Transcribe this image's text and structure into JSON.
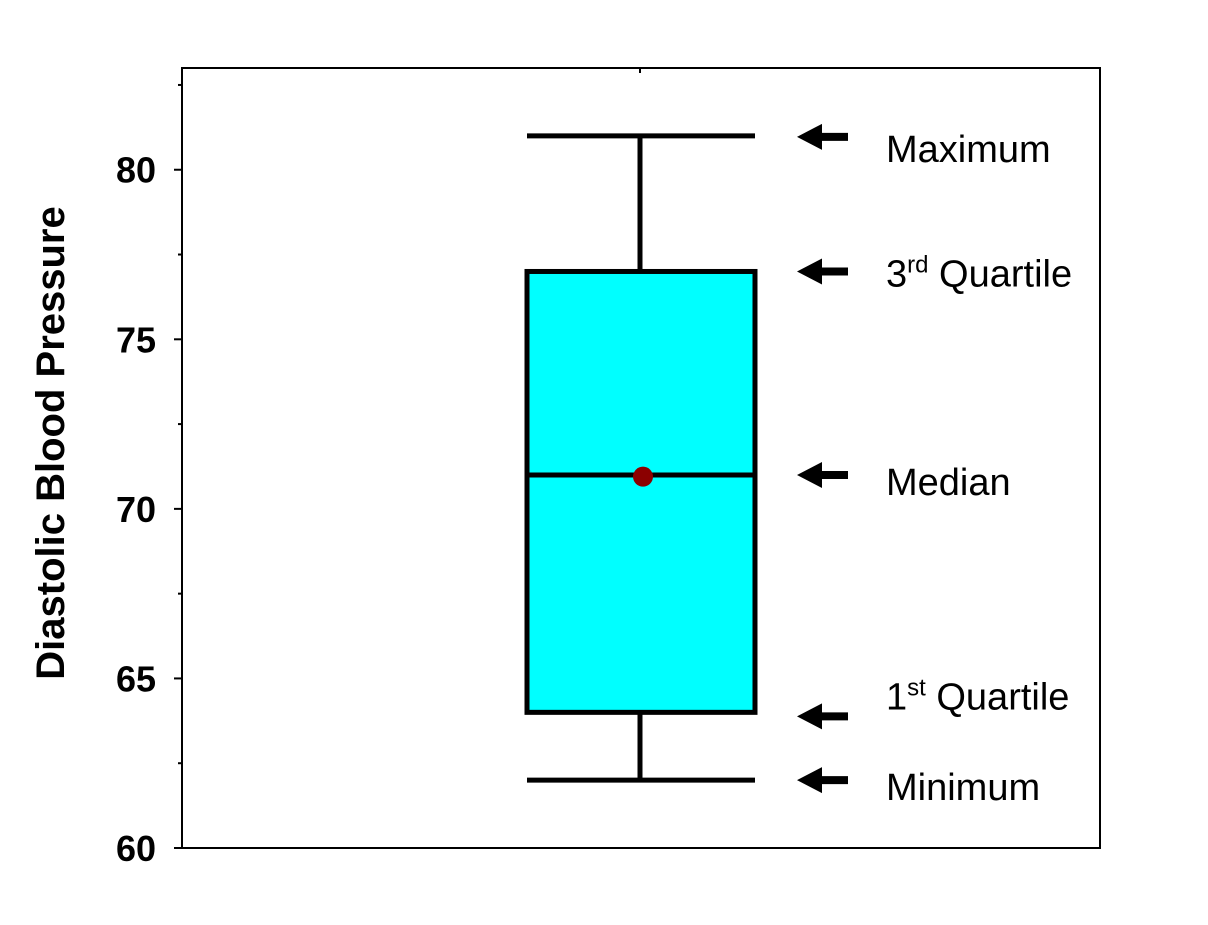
{
  "chart_data": {
    "type": "box",
    "title": "",
    "xlabel": "",
    "ylabel": "Diastolic Blood Pressure",
    "ylim": [
      60,
      83
    ],
    "yticks": [
      60,
      65,
      70,
      75,
      80
    ],
    "grid": false,
    "box": {
      "minimum": 62,
      "q1": 64,
      "median": 71,
      "mean": 70.95,
      "q3": 77,
      "maximum": 81,
      "fill_color": "#00ffff",
      "line_color": "#000000",
      "mean_color": "#8b0000"
    },
    "annotations": [
      {
        "key": "maximum",
        "text": "Maximum",
        "sup": "",
        "rest": ""
      },
      {
        "key": "q3",
        "text": "3",
        "sup": "rd",
        "rest": " Quartile"
      },
      {
        "key": "median",
        "text": "Median",
        "sup": "",
        "rest": ""
      },
      {
        "key": "q1",
        "text": "1",
        "sup": "st",
        "rest": " Quartile"
      },
      {
        "key": "minimum",
        "text": "Minimum",
        "sup": "",
        "rest": ""
      }
    ],
    "arrow_icon": "arrow-left-icon"
  }
}
